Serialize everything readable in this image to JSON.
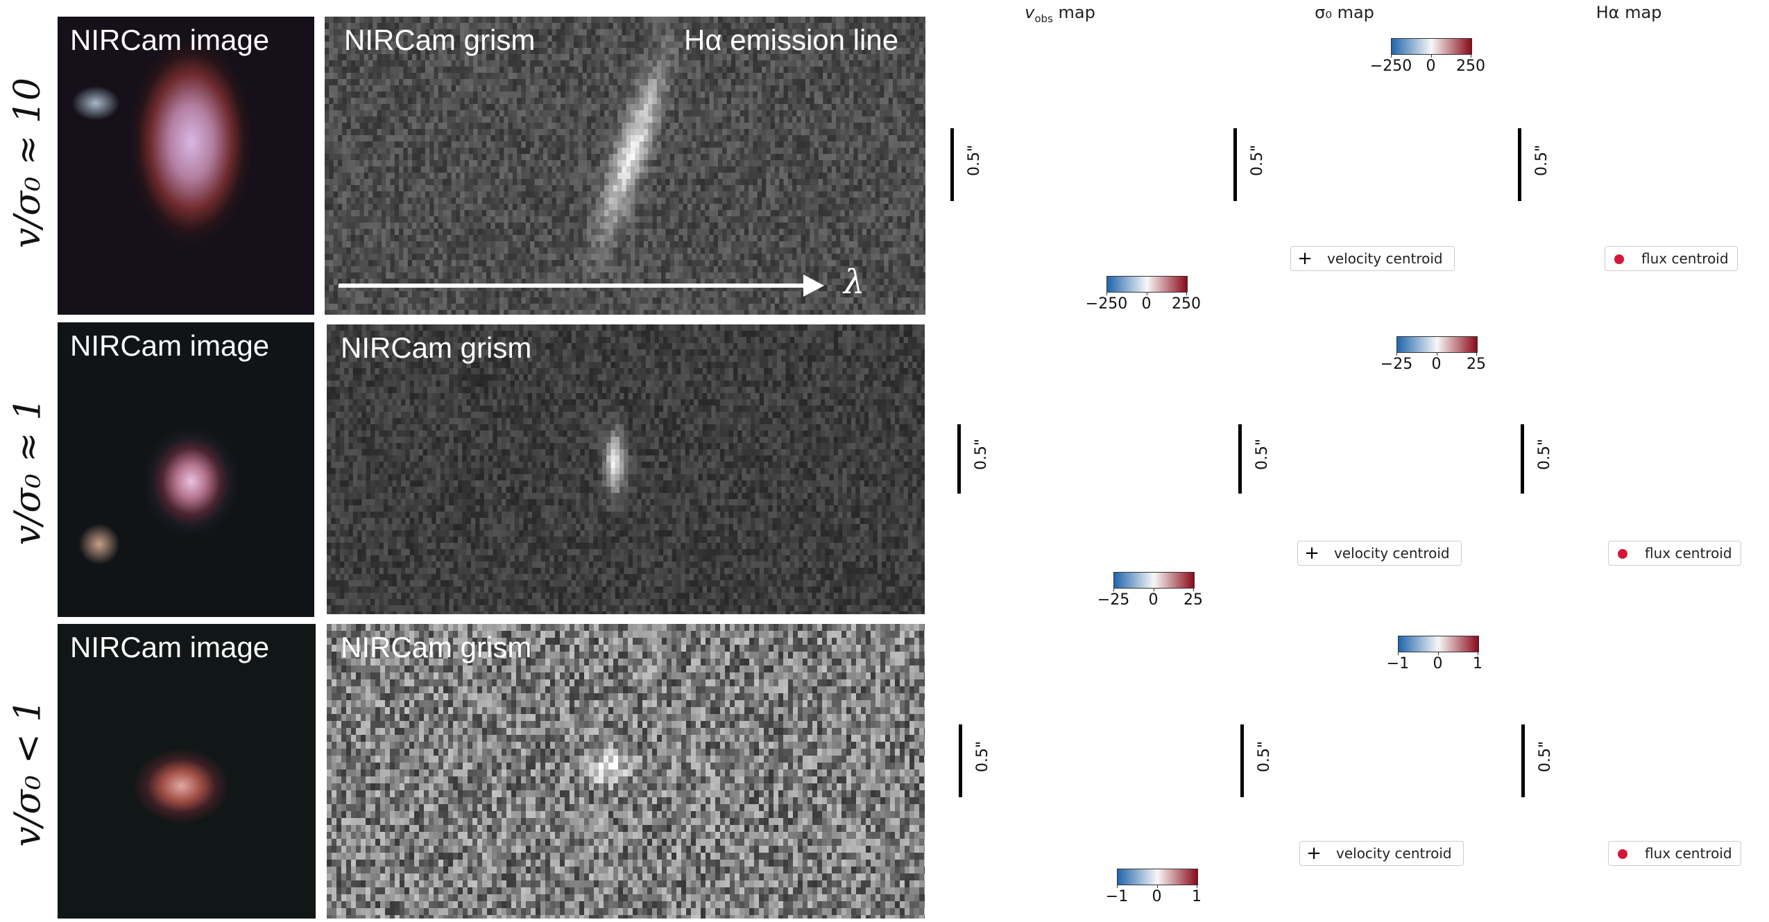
{
  "row_labels": [
    "v/σ₀ ≈ 10",
    "v/σ₀ ≈ 1",
    "v/σ₀ < 1"
  ],
  "panel_text": {
    "image_label": "NIRCam image",
    "grism_label": "NIRCam grism",
    "line_label": "Hα emission line",
    "wavelength_symbol": "λ"
  },
  "column_titles": {
    "vobs": "v_obs map",
    "sigma": "σ₀ map",
    "halpha": "Hα map"
  },
  "scale_label": "0.5\"",
  "legends": {
    "velocity": "velocity centroid",
    "flux": "flux centroid"
  },
  "colorbars": {
    "row1": [
      "−250",
      "0",
      "250"
    ],
    "row2": [
      "−25",
      "0",
      "25"
    ],
    "row3": [
      "−1",
      "0",
      "1"
    ]
  },
  "colors": {
    "marker": "#d7153a",
    "contour_inner": "#e0677e",
    "contour_outer": "#f2b44a",
    "cmap_neg": "#2166ac",
    "cmap_pos": "#8b0a1a"
  }
}
